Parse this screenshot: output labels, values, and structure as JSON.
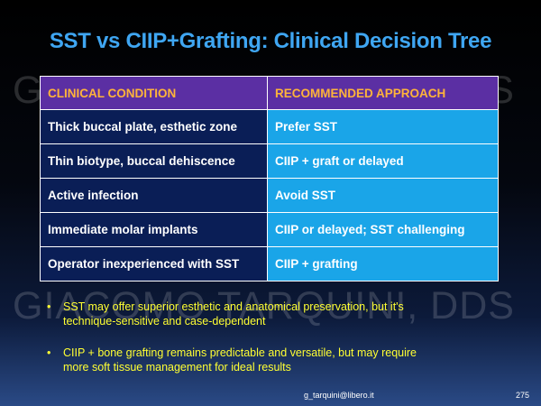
{
  "slide": {
    "title": "SST vs CIIP+Grafting: Clinical Decision Tree",
    "watermark": "GIACOMO TARQUINI, DDS",
    "table": {
      "headers": [
        "CLINICAL CONDITION",
        "RECOMMENDED APPROACH"
      ],
      "rows": [
        {
          "condition": "Thick buccal plate, esthetic zone",
          "approach": "Prefer SST"
        },
        {
          "condition": "Thin biotype, buccal dehiscence",
          "approach": "CIIP + graft or delayed"
        },
        {
          "condition": "Active infection",
          "approach": "Avoid SST"
        },
        {
          "condition": "Immediate molar implants",
          "approach": "CIIP or delayed; SST challenging"
        },
        {
          "condition": "Operator inexperienced with SST",
          "approach": "CIIP + grafting"
        }
      ]
    },
    "bullets": [
      {
        "marker": "•",
        "line1": "SST may offer superior esthetic and anatomical preservation, but it's",
        "line2": "technique-sensitive and case-dependent"
      },
      {
        "marker": "•",
        "line1": "CIIP + bone grafting remains predictable and versatile, but may require",
        "line2": "more soft tissue management for ideal results"
      }
    ],
    "footer": {
      "email": "g_tarquini@libero.it",
      "page_number": "275"
    },
    "colors": {
      "title": "#3fa6f2",
      "header_bg": "#5b2fa3",
      "header_text": "#ffb43a",
      "condition_bg": "#0a1e56",
      "approach_bg": "#1aa5e8",
      "bullet_text": "#ffff33"
    }
  }
}
